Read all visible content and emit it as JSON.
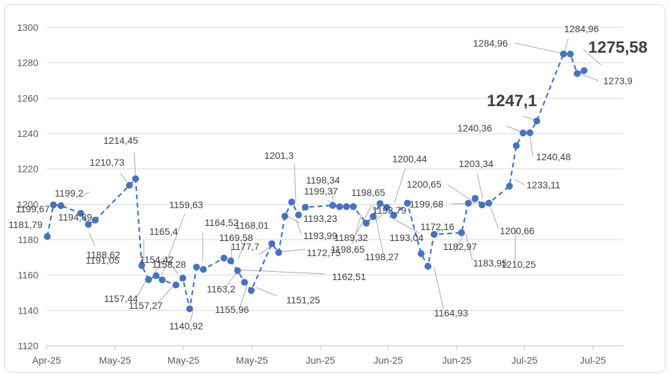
{
  "chart_data": {
    "type": "line",
    "title": "",
    "xlabel": "",
    "ylabel": "",
    "ylim": [
      1120,
      1300
    ],
    "yticks": [
      1120,
      1140,
      1160,
      1180,
      1200,
      1220,
      1240,
      1260,
      1280,
      1300
    ],
    "xticks": [
      "Apr-25",
      "May-25",
      "May-25",
      "May-25",
      "Jun-25",
      "Jun-25",
      "Jun-25",
      "Jul-25",
      "Jul-25"
    ],
    "grid": "horizontal",
    "legend": "none",
    "line_style": "dashed",
    "series_color": "#4472C4",
    "series": [
      {
        "values": [
          1181.79,
          1199.67,
          1199.2,
          1194.89,
          1188.62,
          1191.05,
          1210.73,
          1214.45,
          1165.4,
          1157.44,
          1159.63,
          1157.27,
          1154.42,
          1158.28,
          1140.92,
          1164.52,
          1163.2,
          1169.58,
          1168.01,
          1162.51,
          1155.96,
          1151.25,
          1177.7,
          1172.75,
          1193.23,
          1201.3,
          1193.99,
          1198.34,
          1199.37,
          1198.65,
          1198.65,
          1198.65,
          1189.32,
          1193.04,
          1200.44,
          1198.27,
          1193.79,
          1200.65,
          1172.16,
          1164.93,
          1182.97,
          1183.95,
          1200.65,
          1203.34,
          1199.68,
          1200.66,
          1210.25,
          1233.11,
          1240.36,
          1240.48,
          1247.1,
          1284.96,
          1284.96,
          1273.9,
          1275.58
        ],
        "labels": [
          "1181,79",
          "1199,67",
          "1199,2",
          "1194,89",
          "1188,62",
          "1191,05",
          "1210,73",
          "1214,45",
          "1165,4",
          "1157,44",
          "1159,63",
          "1157,27",
          "1154,42",
          "1158,28",
          "1140,92",
          "1164,52",
          "1163,2",
          "1169,58",
          "1168,01",
          "1162,51",
          "1155,96",
          "1151,25",
          "1177,7",
          "1172,75",
          "1193,23",
          "1201,3",
          "1193,99",
          "1198,34",
          "1199,37",
          "1198,65",
          "",
          "",
          "1189,32",
          "1193,04",
          "1200,44",
          "1198,27",
          "1193,79",
          "",
          "1172,16",
          "1164,93",
          "1182,97",
          "1183,95",
          "1200,65",
          "1203,34",
          "1199,68",
          "1200,66",
          "1210,25",
          "1233,11",
          "1240,36",
          "1240,48",
          "1247,1",
          "1284,96",
          "1284,96",
          "1273,9",
          "1275,58"
        ],
        "extra_labels": [
          "1198,65"
        ]
      }
    ]
  }
}
